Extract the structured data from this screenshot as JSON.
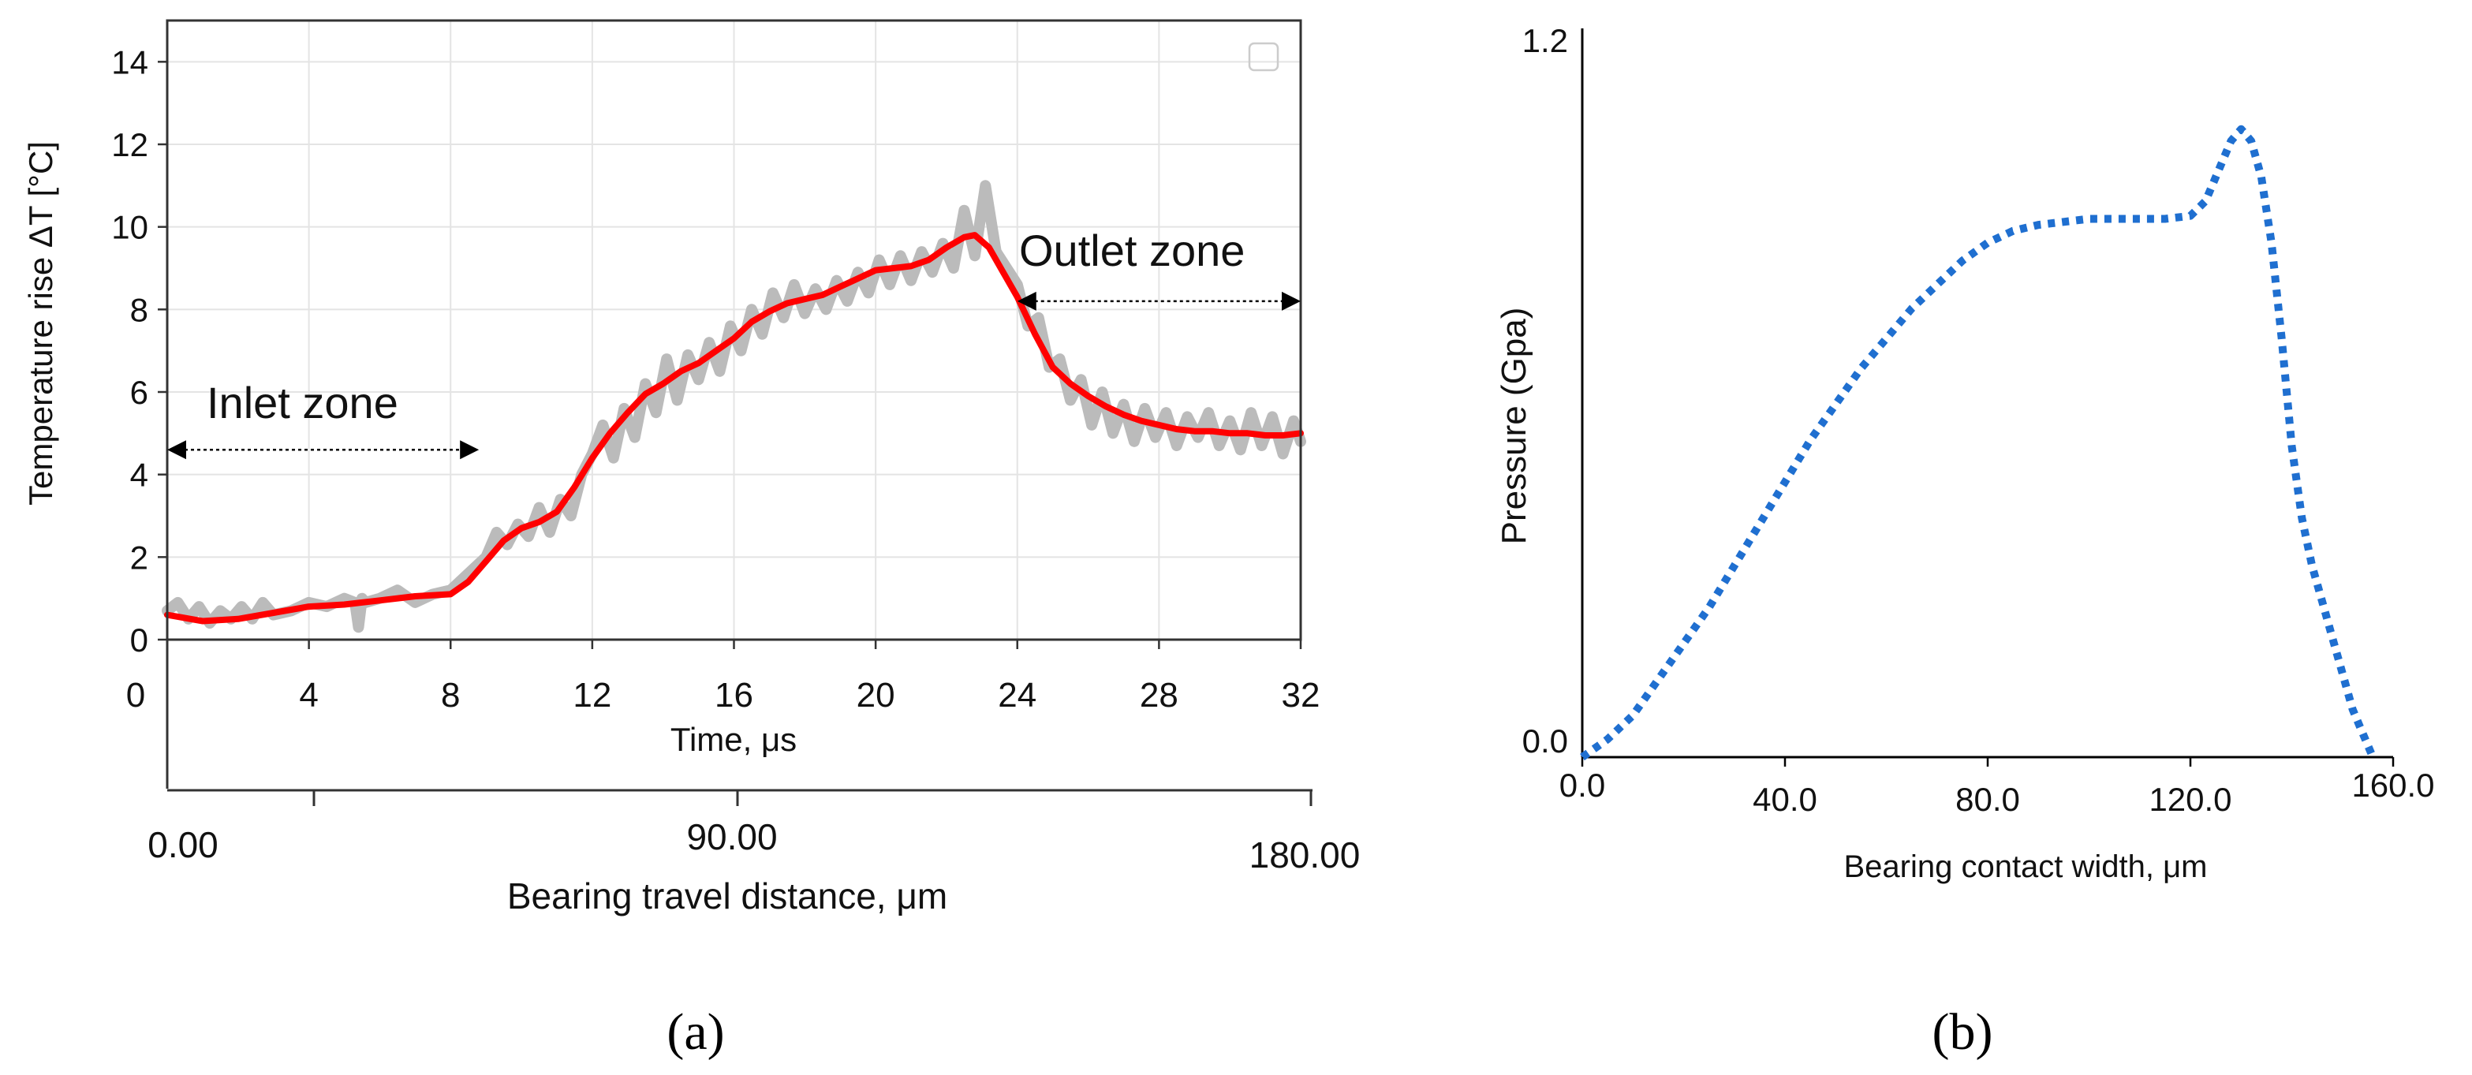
{
  "panel_a_caption": "(a)",
  "panel_b_caption": "(b)",
  "chart_data": [
    {
      "panel": "a",
      "type": "line",
      "xlabel": "Time, μs",
      "ylabel": "Temperature rise ΔT [°C]",
      "xlim": [
        0,
        32
      ],
      "ylim": [
        0,
        15
      ],
      "xticks": [
        "0",
        "4",
        "8",
        "12",
        "16",
        "20",
        "24",
        "28",
        "32"
      ],
      "yticks": [
        "0",
        "2",
        "4",
        "6",
        "8",
        "10",
        "12",
        "14"
      ],
      "grid": true,
      "secondary_axis": {
        "label": "Bearing travel distance, μm",
        "ticks": [
          "0.00",
          "90.00",
          "180.00"
        ]
      },
      "annotations": [
        {
          "text": "Inlet zone",
          "arrow_x": [
            0,
            8.8
          ],
          "y": 4.6
        },
        {
          "text": "Outlet zone",
          "arrow_x": [
            24,
            32
          ],
          "y": 8.2
        }
      ],
      "series": [
        {
          "color": "#ff0000",
          "x": [
            0,
            1,
            2,
            3,
            4,
            5,
            6,
            7,
            8,
            8.5,
            9,
            9.5,
            10,
            10.5,
            11,
            11.5,
            12,
            12.5,
            13,
            13.5,
            14,
            14.5,
            15,
            15.5,
            16,
            16.5,
            17,
            17.5,
            18,
            18.5,
            19,
            19.5,
            20,
            20.5,
            21,
            21.5,
            22,
            22.5,
            22.8,
            23.2,
            23.6,
            24,
            24.5,
            25,
            25.5,
            26,
            26.5,
            27,
            27.5,
            28,
            28.5,
            29,
            29.5,
            30,
            30.5,
            31,
            31.5,
            32
          ],
          "values": [
            0.6,
            0.45,
            0.5,
            0.65,
            0.8,
            0.85,
            0.95,
            1.05,
            1.1,
            1.4,
            1.9,
            2.4,
            2.7,
            2.85,
            3.1,
            3.7,
            4.4,
            5.0,
            5.5,
            5.95,
            6.2,
            6.5,
            6.7,
            7.0,
            7.3,
            7.7,
            7.95,
            8.15,
            8.25,
            8.35,
            8.55,
            8.75,
            8.95,
            9.0,
            9.05,
            9.2,
            9.5,
            9.75,
            9.8,
            9.5,
            8.9,
            8.3,
            7.4,
            6.6,
            6.2,
            5.9,
            5.65,
            5.45,
            5.3,
            5.2,
            5.1,
            5.05,
            5.05,
            5.0,
            5.0,
            4.95,
            4.95,
            5.0
          ]
        },
        {
          "color": "#bbbbbb",
          "x": [
            0,
            0.3,
            0.6,
            0.9,
            1.2,
            1.5,
            1.8,
            2.1,
            2.4,
            2.7,
            3.0,
            3.5,
            4.0,
            4.5,
            5.0,
            5.3,
            5.4,
            5.5,
            5.6,
            6.0,
            6.5,
            7.0,
            7.5,
            8.0,
            8.5,
            9.0,
            9.3,
            9.6,
            9.9,
            10.2,
            10.5,
            10.8,
            11.1,
            11.4,
            11.7,
            12.0,
            12.3,
            12.6,
            12.9,
            13.2,
            13.5,
            13.8,
            14.1,
            14.4,
            14.7,
            15.0,
            15.3,
            15.6,
            15.9,
            16.2,
            16.5,
            16.8,
            17.1,
            17.4,
            17.7,
            18.0,
            18.3,
            18.6,
            18.9,
            19.2,
            19.5,
            19.8,
            20.1,
            20.4,
            20.7,
            21.0,
            21.3,
            21.6,
            21.9,
            22.2,
            22.5,
            22.8,
            23.1,
            23.4,
            23.7,
            24.0,
            24.3,
            24.6,
            24.9,
            25.2,
            25.5,
            25.8,
            26.1,
            26.4,
            26.7,
            27.0,
            27.3,
            27.6,
            27.9,
            28.2,
            28.5,
            28.8,
            29.1,
            29.4,
            29.7,
            30.0,
            30.3,
            30.6,
            30.9,
            31.2,
            31.5,
            31.8,
            32.0
          ],
          "values": [
            0.7,
            0.9,
            0.5,
            0.8,
            0.4,
            0.7,
            0.5,
            0.8,
            0.5,
            0.9,
            0.6,
            0.7,
            0.9,
            0.8,
            1.0,
            0.9,
            0.3,
            1.0,
            0.9,
            1.0,
            1.2,
            0.9,
            1.1,
            1.2,
            1.6,
            2.0,
            2.6,
            2.3,
            2.8,
            2.5,
            3.2,
            2.6,
            3.4,
            3.0,
            4.0,
            4.5,
            5.2,
            4.4,
            5.6,
            4.9,
            6.2,
            5.5,
            6.8,
            5.8,
            6.9,
            6.3,
            7.2,
            6.5,
            7.6,
            7.0,
            8.0,
            7.4,
            8.4,
            7.8,
            8.6,
            7.9,
            8.5,
            8.0,
            8.7,
            8.2,
            8.9,
            8.4,
            9.2,
            8.6,
            9.3,
            8.7,
            9.4,
            8.9,
            9.6,
            9.0,
            10.4,
            9.3,
            11.0,
            9.4,
            9.0,
            8.6,
            7.6,
            7.8,
            6.6,
            6.8,
            5.8,
            6.3,
            5.2,
            6.0,
            5.0,
            5.7,
            4.8,
            5.6,
            4.9,
            5.5,
            4.7,
            5.4,
            4.9,
            5.5,
            4.7,
            5.3,
            4.6,
            5.5,
            4.7,
            5.4,
            4.5,
            5.3,
            4.8
          ]
        }
      ]
    },
    {
      "panel": "b",
      "type": "line",
      "xlabel": "Bearing contact width, μm",
      "ylabel": "Pressure (Gpa)",
      "xlim": [
        0,
        160
      ],
      "ylim": [
        0,
        1.2
      ],
      "xticks": [
        "0.0",
        "40.0",
        "80.0",
        "120.0",
        "160.0"
      ],
      "yticks": [
        "0.0",
        "1.2"
      ],
      "grid": false,
      "series": [
        {
          "color": "#1f6fd0",
          "style": "dotted",
          "x": [
            0,
            5,
            10,
            15,
            20,
            25,
            30,
            35,
            40,
            45,
            50,
            55,
            60,
            65,
            70,
            75,
            80,
            85,
            90,
            95,
            100,
            105,
            110,
            115,
            120,
            123,
            126,
            128,
            130,
            132,
            134,
            136,
            138,
            140,
            142,
            144,
            146,
            148,
            150,
            152,
            154,
            156
          ],
          "values": [
            0.0,
            0.03,
            0.07,
            0.13,
            0.19,
            0.25,
            0.32,
            0.39,
            0.46,
            0.53,
            0.59,
            0.65,
            0.7,
            0.75,
            0.79,
            0.83,
            0.86,
            0.88,
            0.89,
            0.895,
            0.9,
            0.9,
            0.9,
            0.9,
            0.905,
            0.93,
            0.99,
            1.03,
            1.05,
            1.03,
            0.97,
            0.86,
            0.7,
            0.52,
            0.4,
            0.32,
            0.26,
            0.2,
            0.14,
            0.08,
            0.04,
            0.0
          ]
        }
      ]
    }
  ]
}
